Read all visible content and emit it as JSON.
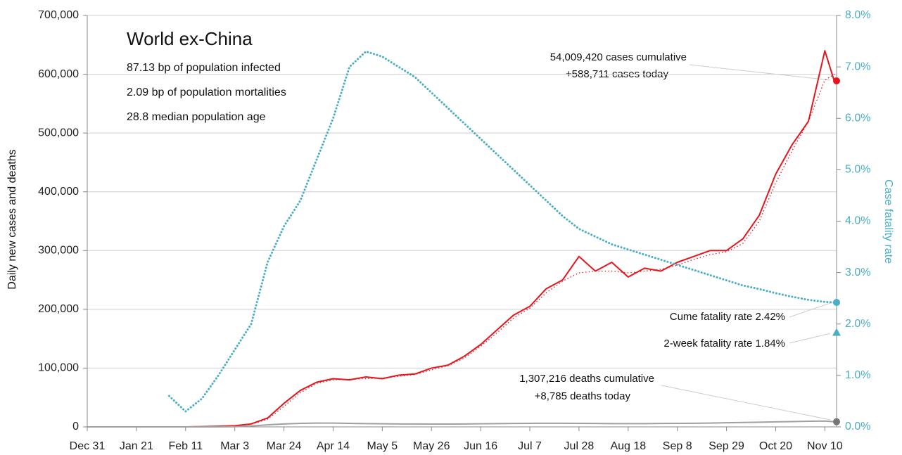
{
  "chart_data": {
    "type": "line",
    "title": "World ex-China",
    "subtitle_lines": [
      "87.13 bp of population infected",
      "2.09 bp of population mortalities",
      "28.8 median population age"
    ],
    "y_label": "Daily new cases and deaths",
    "y2_label": "Case fatality rate",
    "x": [
      0,
      7,
      14,
      21,
      28,
      35,
      42,
      49,
      56,
      63,
      70,
      77,
      84,
      91,
      98,
      105,
      112,
      119,
      126,
      133,
      140,
      147,
      154,
      161,
      168,
      175,
      182,
      189,
      196,
      203,
      210,
      217,
      224,
      231,
      238,
      245,
      252,
      259,
      266,
      273,
      280,
      287,
      294,
      301,
      308,
      315,
      319
    ],
    "xlim": [
      0,
      320
    ],
    "xticks": [
      {
        "value": 0,
        "label": "Dec 31"
      },
      {
        "value": 21,
        "label": "Jan 21"
      },
      {
        "value": 42,
        "label": "Feb 11"
      },
      {
        "value": 63,
        "label": "Mar 3"
      },
      {
        "value": 84,
        "label": "Mar 24"
      },
      {
        "value": 105,
        "label": "Apr 14"
      },
      {
        "value": 126,
        "label": "May 5"
      },
      {
        "value": 147,
        "label": "May 26"
      },
      {
        "value": 168,
        "label": "Jun 16"
      },
      {
        "value": 189,
        "label": "Jul 7"
      },
      {
        "value": 210,
        "label": "Jul 28"
      },
      {
        "value": 231,
        "label": "Aug 18"
      },
      {
        "value": 252,
        "label": "Sep 8"
      },
      {
        "value": 273,
        "label": "Sep 29"
      },
      {
        "value": 294,
        "label": "Oct 20"
      },
      {
        "value": 315,
        "label": "Nov 10"
      }
    ],
    "ylim": [
      0,
      700000
    ],
    "yticks": [
      0,
      {
        "value": 100000,
        "label": "100,000"
      },
      {
        "value": 200000,
        "label": "200,000"
      },
      {
        "value": 300000,
        "label": "300,000"
      },
      {
        "value": 400000,
        "label": "400,000"
      },
      {
        "value": 500000,
        "label": "500,000"
      },
      {
        "value": 600000,
        "label": "600,000"
      },
      {
        "value": 700000,
        "label": "700,000"
      }
    ],
    "y2lim": [
      0,
      8
    ],
    "y2ticks": [
      {
        "value": 0,
        "label": "0.0%"
      },
      {
        "value": 1,
        "label": "1.0%"
      },
      {
        "value": 2,
        "label": "2.0%"
      },
      {
        "value": 3,
        "label": "3.0%"
      },
      {
        "value": 4,
        "label": "4.0%"
      },
      {
        "value": 5,
        "label": "5.0%"
      },
      {
        "value": 6,
        "label": "6.0%"
      },
      {
        "value": 7,
        "label": "7.0%"
      },
      {
        "value": 8,
        "label": "8.0%"
      }
    ],
    "grid": true,
    "series": [
      {
        "color": "#e8141c",
        "style": "solid",
        "values": [
          0,
          0,
          0,
          0,
          0,
          0,
          0,
          500,
          1000,
          2000,
          5000,
          15000,
          40000,
          62000,
          76000,
          82000,
          80000,
          85000,
          82000,
          88000,
          90000,
          100000,
          105000,
          120000,
          140000,
          165000,
          190000,
          205000,
          235000,
          250000,
          290000,
          265000,
          280000,
          255000,
          270000,
          265000,
          280000,
          290000,
          300000,
          300000,
          320000,
          360000,
          430000,
          480000,
          520000,
          640000,
          588711
        ]
      },
      {
        "color": "#e8141c",
        "style": "dotted",
        "values": [
          0,
          0,
          0,
          0,
          0,
          0,
          0,
          300,
          800,
          1800,
          4500,
          13000,
          35000,
          58000,
          74000,
          80000,
          81000,
          82000,
          83000,
          86000,
          89000,
          97000,
          104000,
          117000,
          137000,
          160000,
          185000,
          202000,
          228000,
          248000,
          262000,
          265000,
          265000,
          262000,
          265000,
          268000,
          275000,
          285000,
          293000,
          298000,
          312000,
          350000,
          415000,
          470000,
          520000,
          590000,
          600000
        ]
      },
      {
        "color": "#a0a0a0",
        "style": "solid",
        "values": [
          0,
          0,
          0,
          0,
          0,
          0,
          0,
          0,
          0,
          300,
          1500,
          3500,
          5000,
          6000,
          6500,
          6500,
          6000,
          5500,
          5200,
          5000,
          5000,
          4800,
          4800,
          5000,
          5200,
          5500,
          5800,
          6000,
          6200,
          6200,
          6000,
          5800,
          5600,
          5500,
          5600,
          5800,
          6000,
          6200,
          6500,
          7000,
          7500,
          8000,
          8500,
          9000,
          9500,
          9800,
          8785
        ]
      },
      {
        "color": "#4aaec4",
        "style": "dotted",
        "axis": "y2",
        "values": [
          null,
          null,
          null,
          null,
          null,
          0.6,
          0.3,
          0.55,
          1.0,
          1.5,
          2.0,
          3.2,
          3.9,
          4.4,
          5.2,
          6.0,
          7.0,
          7.3,
          7.2,
          7.0,
          6.8,
          6.5,
          6.2,
          5.9,
          5.6,
          5.3,
          5.0,
          4.7,
          4.4,
          4.1,
          3.85,
          3.7,
          3.55,
          3.45,
          3.35,
          3.25,
          3.15,
          3.05,
          2.95,
          2.85,
          2.75,
          2.68,
          2.6,
          2.53,
          2.47,
          2.43,
          2.42
        ]
      }
    ],
    "end_markers": {
      "x": 320,
      "cases": 588711,
      "cfr": 2.42,
      "cfr_2week": 1.84,
      "deaths": 8785
    },
    "annotations": {
      "cases_cumulative": "54,009,420 cases cumulative",
      "cases_today": "+588,711 cases today",
      "cume_fatality": "Cume fatality rate 2.42%",
      "two_week_fatality": "2-week fatality rate 1.84%",
      "deaths_cumulative": "1,307,216 deaths cumulative",
      "deaths_today": "+8,785 deaths today"
    }
  }
}
